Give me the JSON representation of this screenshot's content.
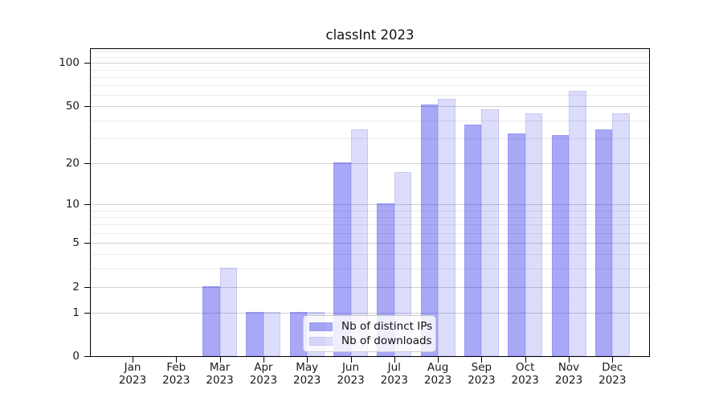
{
  "title": "classInt 2023",
  "chart_data": {
    "type": "bar",
    "title": "classInt 2023",
    "categories": [
      "Jan",
      "Feb",
      "Mar",
      "Apr",
      "May",
      "Jun",
      "Jul",
      "Aug",
      "Sep",
      "Oct",
      "Nov",
      "Dec"
    ],
    "year": "2023",
    "series": [
      {
        "name": "Nb of distinct IPs",
        "color": "rgba(20,20,230,0.37)",
        "values": [
          0,
          0,
          2,
          1,
          1,
          20,
          10,
          51,
          37,
          32,
          31,
          34
        ]
      },
      {
        "name": "Nb of downloads",
        "color": "rgba(20,20,230,0.15)",
        "values": [
          0,
          0,
          3,
          1,
          1,
          34,
          17,
          56,
          47,
          44,
          63,
          44
        ]
      }
    ],
    "yscale": "log1p",
    "ylim": [
      0,
      125
    ],
    "y_major_ticks": [
      100,
      50,
      20,
      10,
      5,
      2,
      1,
      0
    ],
    "y_minor_gridlines": [
      3,
      4,
      6,
      7,
      8,
      9,
      30,
      40,
      60,
      70,
      80,
      90,
      110,
      120
    ],
    "grid": true,
    "legend_position": "lower center"
  },
  "colors": {
    "bar_dark": "rgba(20,20,230,0.37)",
    "bar_light": "rgba(20,20,230,0.15)",
    "grid_major": "#d2d2d2",
    "grid_minor": "#ececec",
    "spine": "#000000",
    "text": "#1a1a1a",
    "legend_border": "#cccccc",
    "legend_bg": "rgba(255,255,255,0.8)"
  }
}
